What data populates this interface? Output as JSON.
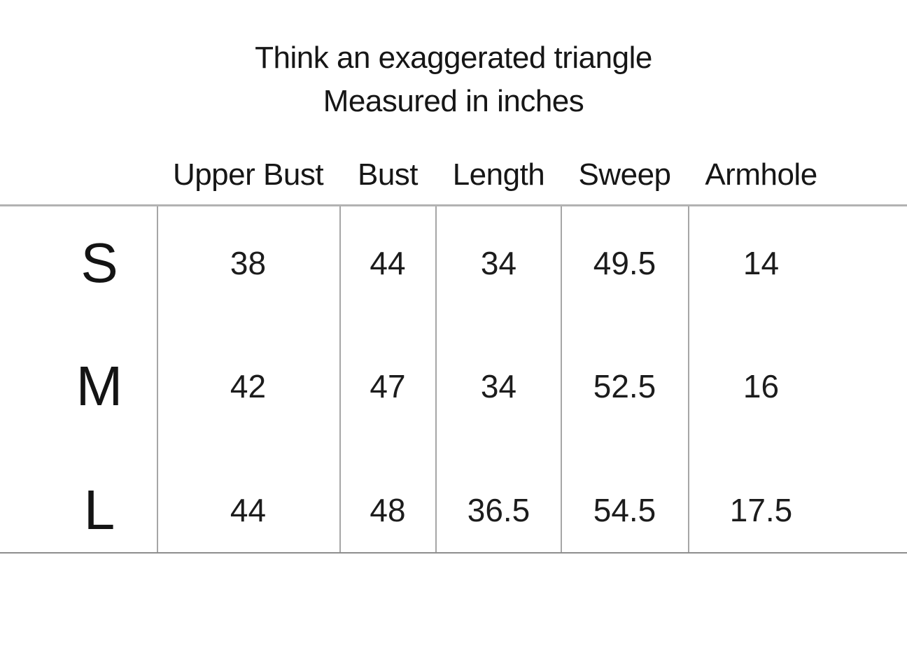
{
  "title": {
    "line1": "Think an exaggerated triangle",
    "line2": "Measured in inches"
  },
  "table": {
    "headers": [
      "Upper Bust",
      "Bust",
      "Length",
      "Sweep",
      "Armhole"
    ],
    "rows": [
      {
        "size": "S",
        "values": [
          "38",
          "44",
          "34",
          "49.5",
          "14"
        ]
      },
      {
        "size": "M",
        "values": [
          "42",
          "47",
          "34",
          "52.5",
          "16"
        ]
      },
      {
        "size": "L",
        "values": [
          "44",
          "48",
          "36.5",
          "54.5",
          "17.5"
        ]
      }
    ],
    "units": "inches"
  },
  "colors": {
    "background": "#ffffff",
    "text": "#1c1c1c",
    "line_top": "#b2b2b2",
    "line_vertical": "#a6a6a6",
    "line_bottom": "#8e8e8e"
  },
  "chart_data": {
    "type": "table",
    "title": "Think an exaggerated triangle",
    "subtitle": "Measured in inches",
    "units": "inches",
    "columns": [
      "",
      "Upper Bust",
      "Bust",
      "Length",
      "Sweep",
      "Armhole"
    ],
    "rows": [
      [
        "S",
        38,
        44,
        34,
        49.5,
        14
      ],
      [
        "M",
        42,
        47,
        34,
        52.5,
        16
      ],
      [
        "L",
        44,
        48,
        36.5,
        54.5,
        17.5
      ]
    ]
  }
}
